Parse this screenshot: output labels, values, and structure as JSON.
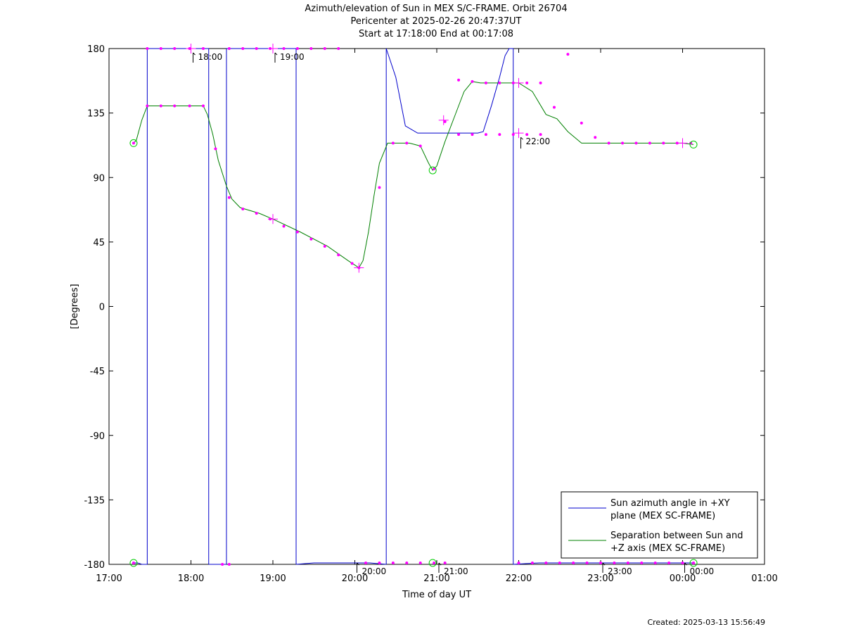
{
  "chart_data": {
    "type": "line",
    "title": [
      "Azimuth/elevation of Sun in MEX S/C-FRAME.  Orbit 26704",
      "Pericenter at 2025-02-26 20:47:37UT",
      "Start at 17:18:00 End at 00:17:08"
    ],
    "xlabel": "Time of day UT",
    "ylabel": "[Degrees]",
    "xlim": [
      0,
      480
    ],
    "ylim": [
      -180,
      180
    ],
    "xticks": [
      0,
      60,
      120,
      180,
      240,
      300,
      360,
      420,
      480
    ],
    "xtick_labels": [
      "17:00",
      "18:00",
      "19:00",
      "20:00",
      "21:00",
      "22:00",
      "23:00",
      "00:00",
      "01:00"
    ],
    "yticks": [
      -180,
      -135,
      -90,
      -45,
      0,
      45,
      90,
      135,
      180
    ],
    "ytick_labels": [
      "-180",
      "-135",
      "-90",
      "-45",
      "0",
      "45",
      "90",
      "135",
      "180"
    ],
    "grid": false,
    "legend_position": "bottom-right",
    "series": [
      {
        "name": "Sun azimuth angle in +XY plane (MEX SC-FRAME)",
        "legend_lines": [
          "Sun azimuth angle in +XY",
          "plane (MEX SC-FRAME)"
        ],
        "color": "#0000cc",
        "segments": [
          [
            [
              18,
              -179
            ],
            [
              21,
              -179
            ],
            [
              24,
              -180
            ],
            [
              28,
              -180
            ]
          ],
          [
            [
              28,
              180
            ],
            [
              59,
              180
            ],
            [
              73,
              180
            ]
          ],
          [
            [
              73,
              -180
            ],
            [
              86,
              -180
            ]
          ],
          [
            [
              86,
              180
            ],
            [
              120,
              180
            ],
            [
              137,
              180
            ]
          ],
          [
            [
              137,
              -180
            ],
            [
              150,
              -179
            ],
            [
              175,
              -179
            ],
            [
              191,
              -179
            ],
            [
              203,
              -180
            ]
          ],
          [
            [
              203,
              180
            ],
            [
              210,
              160
            ],
            [
              217,
              126
            ],
            [
              226,
              121
            ],
            [
              270,
              121
            ],
            [
              274,
              122
            ],
            [
              280,
              140
            ],
            [
              286,
              160
            ],
            [
              290,
              175
            ],
            [
              293,
              180
            ],
            [
              296,
              180
            ]
          ],
          [
            [
              296,
              -180
            ],
            [
              315,
              -179
            ],
            [
              340,
              -179
            ],
            [
              380,
              -179
            ],
            [
              410,
              -179
            ],
            [
              428,
              -179
            ]
          ]
        ]
      },
      {
        "name": "Separation between Sun and +Z axis (MEX SC-FRAME)",
        "legend_lines": [
          "Separation between Sun and",
          "+Z axis (MEX SC-FRAME)"
        ],
        "color": "#008000",
        "points": [
          [
            18,
            114
          ],
          [
            20,
            116
          ],
          [
            24,
            130
          ],
          [
            28,
            140
          ],
          [
            40,
            140
          ],
          [
            59,
            140
          ],
          [
            69,
            140
          ],
          [
            72,
            134
          ],
          [
            76,
            120
          ],
          [
            80,
            102
          ],
          [
            86,
            84
          ],
          [
            90,
            75
          ],
          [
            96,
            69
          ],
          [
            110,
            65
          ],
          [
            120,
            61
          ],
          [
            140,
            52
          ],
          [
            160,
            42
          ],
          [
            175,
            32
          ],
          [
            183,
            27
          ],
          [
            186,
            32
          ],
          [
            190,
            52
          ],
          [
            194,
            77
          ],
          [
            198,
            100
          ],
          [
            204,
            114
          ],
          [
            210,
            114
          ],
          [
            220,
            114
          ],
          [
            228,
            112
          ],
          [
            234,
            100
          ],
          [
            237,
            95
          ],
          [
            240,
            98
          ],
          [
            246,
            115
          ],
          [
            254,
            135
          ],
          [
            260,
            150
          ],
          [
            266,
            157
          ],
          [
            272,
            156
          ],
          [
            290,
            156
          ],
          [
            300,
            156
          ],
          [
            310,
            150
          ],
          [
            320,
            134
          ],
          [
            328,
            131
          ],
          [
            336,
            122
          ],
          [
            346,
            114
          ],
          [
            360,
            114
          ],
          [
            390,
            114
          ],
          [
            420,
            114
          ],
          [
            428,
            113
          ]
        ]
      }
    ],
    "sample_markers": {
      "color": "#ff00ff",
      "points": [
        [
          18,
          114
        ],
        [
          28,
          140
        ],
        [
          38,
          140
        ],
        [
          48,
          140
        ],
        [
          59,
          140
        ],
        [
          69,
          140
        ],
        [
          78,
          110
        ],
        [
          88,
          76
        ],
        [
          98,
          68
        ],
        [
          108,
          65
        ],
        [
          118,
          61
        ],
        [
          128,
          56
        ],
        [
          138,
          52
        ],
        [
          148,
          47
        ],
        [
          158,
          42
        ],
        [
          168,
          36
        ],
        [
          178,
          30
        ],
        [
          183,
          27
        ],
        [
          198,
          83
        ],
        [
          208,
          114
        ],
        [
          218,
          114
        ],
        [
          228,
          112
        ],
        [
          238,
          96
        ],
        [
          246,
          129
        ],
        [
          256,
          158
        ],
        [
          266,
          157
        ],
        [
          276,
          156
        ],
        [
          286,
          156
        ],
        [
          296,
          156
        ],
        [
          306,
          156
        ],
        [
          316,
          156
        ],
        [
          326,
          139
        ],
        [
          336,
          176
        ],
        [
          346,
          128
        ],
        [
          356,
          118
        ],
        [
          366,
          114
        ],
        [
          376,
          114
        ],
        [
          386,
          114
        ],
        [
          396,
          114
        ],
        [
          406,
          114
        ],
        [
          416,
          114
        ],
        [
          426,
          114
        ],
        [
          28,
          180
        ],
        [
          38,
          180
        ],
        [
          48,
          180
        ],
        [
          59,
          180
        ],
        [
          69,
          180
        ],
        [
          88,
          180
        ],
        [
          98,
          180
        ],
        [
          108,
          180
        ],
        [
          118,
          180
        ],
        [
          128,
          180
        ],
        [
          138,
          180
        ],
        [
          148,
          180
        ],
        [
          158,
          180
        ],
        [
          168,
          180
        ],
        [
          18,
          -179
        ],
        [
          88,
          -180
        ],
        [
          83,
          -180
        ],
        [
          188,
          -179
        ],
        [
          198,
          -179
        ],
        [
          208,
          -179
        ],
        [
          218,
          -179
        ],
        [
          228,
          -179
        ],
        [
          238,
          -179
        ],
        [
          246,
          -179
        ],
        [
          256,
          120
        ],
        [
          266,
          120
        ],
        [
          276,
          120
        ],
        [
          286,
          120
        ],
        [
          296,
          120
        ],
        [
          306,
          120
        ],
        [
          316,
          120
        ],
        [
          300,
          -179
        ],
        [
          310,
          -179
        ],
        [
          320,
          -179
        ],
        [
          330,
          -179
        ],
        [
          340,
          -179
        ],
        [
          350,
          -179
        ],
        [
          360,
          -179
        ],
        [
          370,
          -179
        ],
        [
          380,
          -179
        ],
        [
          390,
          -179
        ],
        [
          400,
          -179
        ],
        [
          410,
          -179
        ],
        [
          420,
          -179
        ],
        [
          428,
          -179
        ]
      ]
    },
    "hour_crosses": [
      [
        60,
        180
      ],
      [
        120,
        180
      ],
      [
        120,
        61
      ],
      [
        183,
        27
      ],
      [
        245,
        130
      ],
      [
        300,
        121
      ],
      [
        300,
        156
      ],
      [
        420,
        114
      ]
    ],
    "endpoint_circles": [
      [
        18,
        114
      ],
      [
        428,
        113
      ],
      [
        18,
        -179
      ],
      [
        428,
        -179
      ],
      [
        237,
        95
      ],
      [
        237,
        -179
      ]
    ],
    "hour_annotations": [
      {
        "label": "18:00",
        "x": 60,
        "y": 180
      },
      {
        "label": "19:00",
        "x": 120,
        "y": 180
      },
      {
        "label": "20:00",
        "x": 180,
        "y": -180
      },
      {
        "label": "21:00",
        "x": 240,
        "y": -180
      },
      {
        "label": "22:00",
        "x": 300,
        "y": 120
      },
      {
        "label": "23:00",
        "x": 360,
        "y": -180
      },
      {
        "label": "00:00",
        "x": 420,
        "y": -180
      }
    ]
  },
  "footer": {
    "created": "Created: 2025-03-13 15:56:49"
  }
}
